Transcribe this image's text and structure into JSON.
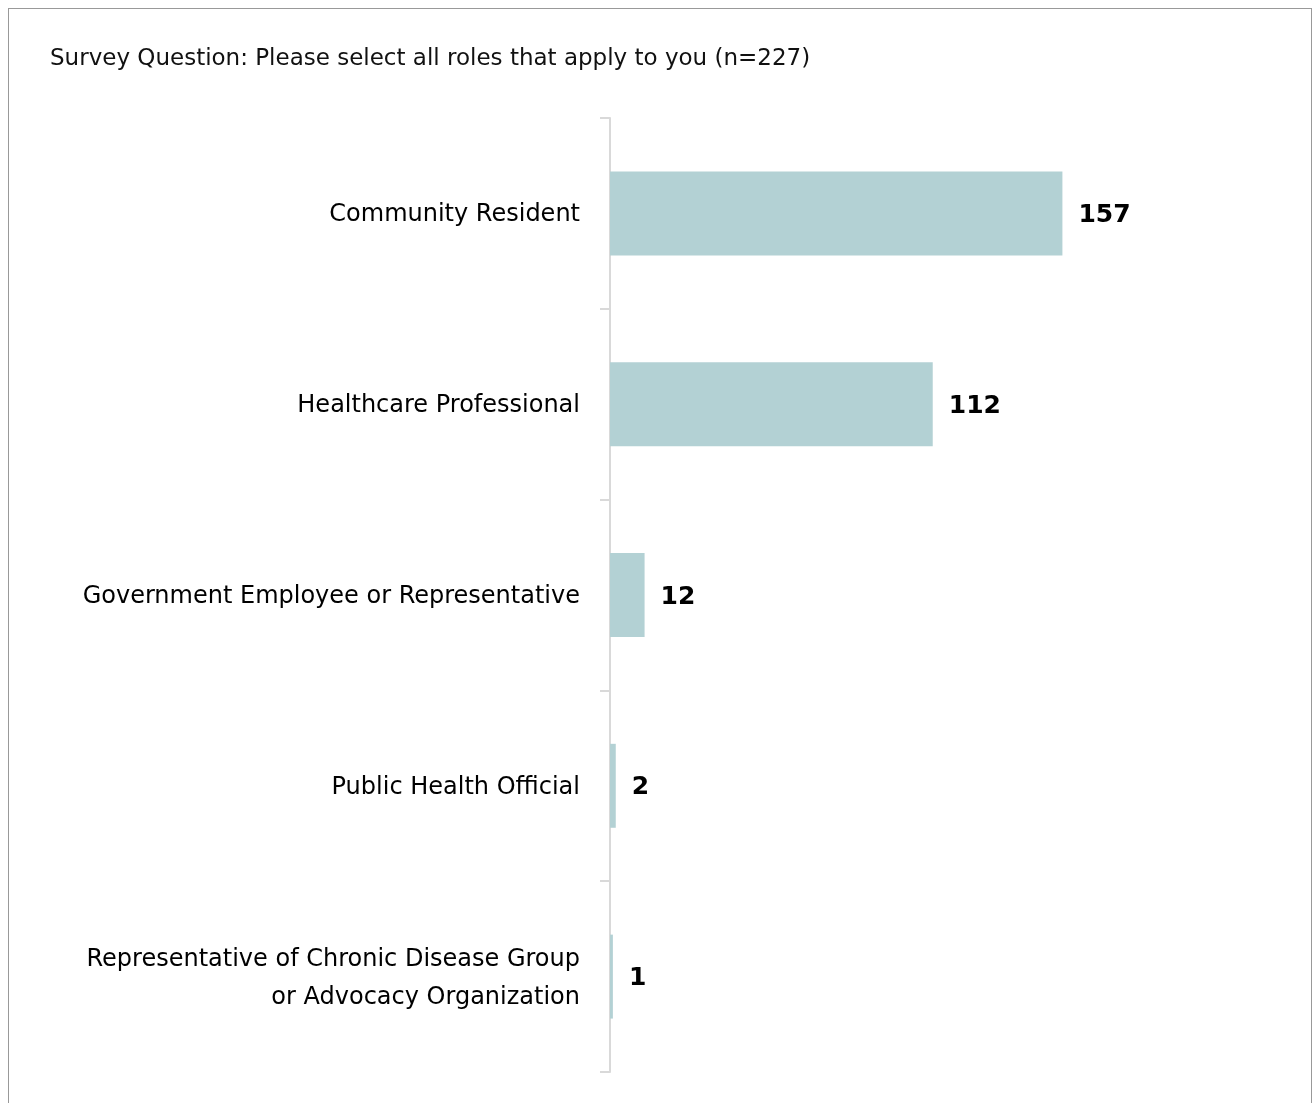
{
  "chart_data": {
    "type": "bar",
    "orientation": "horizontal",
    "title": "Survey Question: Please select all roles that apply to you (n=227)",
    "categories": [
      "Community Resident",
      "Healthcare Professional",
      "Government Employee or Representative",
      "Public Health Official",
      "Representative of Chronic Disease Group or Advocacy Organization"
    ],
    "values": [
      157,
      112,
      12,
      2,
      1
    ],
    "color": "#b3d1d4",
    "data_labels": true
  }
}
